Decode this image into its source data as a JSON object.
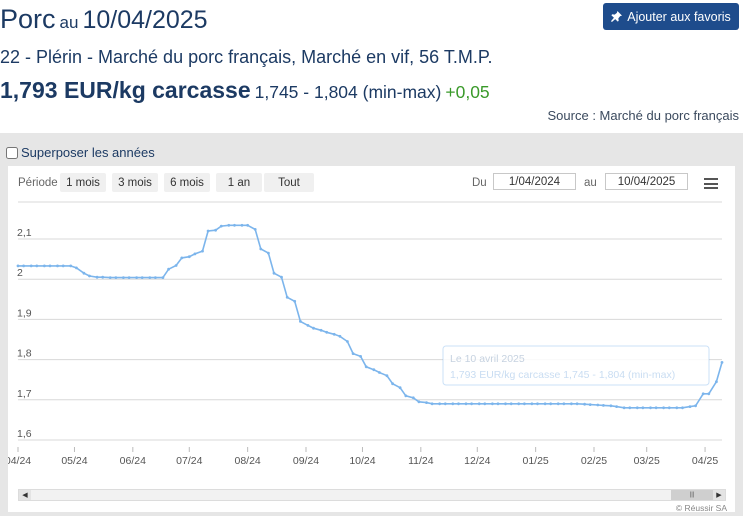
{
  "header": {
    "title": "Porc",
    "date_prefix": "au",
    "date": "10/04/2025",
    "favorite_label": "Ajouter aux favoris",
    "subtitle": "22 - Plérin - Marché du porc français, Marché en vif, 56 T.M.P.",
    "price": "1,793 EUR/kg carcasse",
    "range": "1,745 - 1,804 (min-max)",
    "change": "+0,05",
    "source": "Source : Marché du porc français"
  },
  "controls": {
    "overlay_label": "Superposer les années",
    "period_label": "Période",
    "zoom_buttons": [
      "1 mois",
      "3 mois",
      "6 mois",
      "1 an",
      "Tout"
    ],
    "from_label": "Du",
    "from_value": "1/04/2024",
    "to_label": "au",
    "to_value": "10/04/2025",
    "credits": "© Réussir SA"
  },
  "tooltip": {
    "line1": "Le 10 avril 2025",
    "line2": "1,793 EUR/kg carcasse 1,745 - 1,804 (min-max)"
  },
  "colors": {
    "line": "#7cb5ec",
    "accent": "#1e4c8c",
    "positive": "#3a9a2a"
  },
  "chart_data": {
    "type": "line",
    "x_start": "2024-04-01",
    "x_end": "2025-04-10",
    "ylim": [
      1.6,
      2.15
    ],
    "y_ticks": [
      1.6,
      1.7,
      1.8,
      1.9,
      2,
      2.1
    ],
    "y_tick_labels": [
      "1,6",
      "1,7",
      "1,8",
      "1,9",
      "2",
      "2,1"
    ],
    "x_tick_labels": [
      "04/24",
      "05/24",
      "06/24",
      "07/24",
      "08/24",
      "09/24",
      "10/24",
      "11/24",
      "12/24",
      "01/25",
      "02/25",
      "03/25",
      "04/25"
    ],
    "x_tick_dates": [
      "2024-04-01",
      "2024-05-01",
      "2024-06-01",
      "2024-07-01",
      "2024-08-01",
      "2024-09-01",
      "2024-10-01",
      "2024-11-01",
      "2024-12-01",
      "2025-01-01",
      "2025-02-01",
      "2025-03-01",
      "2025-04-01"
    ],
    "series": [
      {
        "points": [
          [
            "2024-04-01",
            2.033
          ],
          [
            "2024-04-04",
            2.033
          ],
          [
            "2024-04-08",
            2.033
          ],
          [
            "2024-04-11",
            2.033
          ],
          [
            "2024-04-15",
            2.033
          ],
          [
            "2024-04-18",
            2.033
          ],
          [
            "2024-04-22",
            2.033
          ],
          [
            "2024-04-25",
            2.033
          ],
          [
            "2024-04-29",
            2.033
          ],
          [
            "2024-05-02",
            2.028
          ],
          [
            "2024-05-06",
            2.015
          ],
          [
            "2024-05-09",
            2.008
          ],
          [
            "2024-05-13",
            2.005
          ],
          [
            "2024-05-16",
            2.005
          ],
          [
            "2024-05-20",
            2.004
          ],
          [
            "2024-05-23",
            2.004
          ],
          [
            "2024-05-27",
            2.004
          ],
          [
            "2024-05-30",
            2.004
          ],
          [
            "2024-06-03",
            2.004
          ],
          [
            "2024-06-06",
            2.004
          ],
          [
            "2024-06-10",
            2.004
          ],
          [
            "2024-06-13",
            2.004
          ],
          [
            "2024-06-17",
            2.004
          ],
          [
            "2024-06-20",
            2.025
          ],
          [
            "2024-06-24",
            2.034
          ],
          [
            "2024-06-27",
            2.053
          ],
          [
            "2024-07-01",
            2.056
          ],
          [
            "2024-07-04",
            2.063
          ],
          [
            "2024-07-08",
            2.07
          ],
          [
            "2024-07-11",
            2.12
          ],
          [
            "2024-07-15",
            2.122
          ],
          [
            "2024-07-18",
            2.132
          ],
          [
            "2024-07-22",
            2.134
          ],
          [
            "2024-07-25",
            2.134
          ],
          [
            "2024-07-29",
            2.134
          ],
          [
            "2024-08-01",
            2.134
          ],
          [
            "2024-08-05",
            2.124
          ],
          [
            "2024-08-08",
            2.075
          ],
          [
            "2024-08-12",
            2.065
          ],
          [
            "2024-08-15",
            2.015
          ],
          [
            "2024-08-19",
            2.005
          ],
          [
            "2024-08-22",
            1.955
          ],
          [
            "2024-08-26",
            1.945
          ],
          [
            "2024-08-29",
            1.895
          ],
          [
            "2024-09-02",
            1.885
          ],
          [
            "2024-09-05",
            1.878
          ],
          [
            "2024-09-09",
            1.873
          ],
          [
            "2024-09-12",
            1.868
          ],
          [
            "2024-09-16",
            1.863
          ],
          [
            "2024-09-19",
            1.858
          ],
          [
            "2024-09-23",
            1.845
          ],
          [
            "2024-09-26",
            1.815
          ],
          [
            "2024-09-30",
            1.808
          ],
          [
            "2024-10-03",
            1.782
          ],
          [
            "2024-10-07",
            1.775
          ],
          [
            "2024-10-10",
            1.768
          ],
          [
            "2024-10-14",
            1.76
          ],
          [
            "2024-10-17",
            1.74
          ],
          [
            "2024-10-21",
            1.73
          ],
          [
            "2024-10-24",
            1.71
          ],
          [
            "2024-10-28",
            1.705
          ],
          [
            "2024-10-31",
            1.695
          ],
          [
            "2024-11-04",
            1.693
          ],
          [
            "2024-11-07",
            1.69
          ],
          [
            "2024-11-11",
            1.69
          ],
          [
            "2024-11-14",
            1.69
          ],
          [
            "2024-11-18",
            1.69
          ],
          [
            "2024-11-21",
            1.69
          ],
          [
            "2024-11-25",
            1.69
          ],
          [
            "2024-11-28",
            1.69
          ],
          [
            "2024-12-02",
            1.69
          ],
          [
            "2024-12-05",
            1.69
          ],
          [
            "2024-12-09",
            1.69
          ],
          [
            "2024-12-12",
            1.69
          ],
          [
            "2024-12-16",
            1.69
          ],
          [
            "2024-12-19",
            1.69
          ],
          [
            "2024-12-23",
            1.69
          ],
          [
            "2024-12-26",
            1.69
          ],
          [
            "2024-12-30",
            1.69
          ],
          [
            "2025-01-02",
            1.69
          ],
          [
            "2025-01-06",
            1.69
          ],
          [
            "2025-01-09",
            1.69
          ],
          [
            "2025-01-13",
            1.69
          ],
          [
            "2025-01-16",
            1.69
          ],
          [
            "2025-01-20",
            1.69
          ],
          [
            "2025-01-23",
            1.69
          ],
          [
            "2025-01-27",
            1.689
          ],
          [
            "2025-01-30",
            1.688
          ],
          [
            "2025-02-03",
            1.687
          ],
          [
            "2025-02-06",
            1.686
          ],
          [
            "2025-02-10",
            1.685
          ],
          [
            "2025-02-13",
            1.683
          ],
          [
            "2025-02-17",
            1.68
          ],
          [
            "2025-02-20",
            1.68
          ],
          [
            "2025-02-24",
            1.68
          ],
          [
            "2025-02-27",
            1.68
          ],
          [
            "2025-03-03",
            1.68
          ],
          [
            "2025-03-06",
            1.68
          ],
          [
            "2025-03-10",
            1.68
          ],
          [
            "2025-03-13",
            1.68
          ],
          [
            "2025-03-17",
            1.68
          ],
          [
            "2025-03-20",
            1.68
          ],
          [
            "2025-03-24",
            1.683
          ],
          [
            "2025-03-27",
            1.685
          ],
          [
            "2025-03-31",
            1.715
          ],
          [
            "2025-04-03",
            1.715
          ],
          [
            "2025-04-07",
            1.745
          ],
          [
            "2025-04-10",
            1.793
          ]
        ]
      }
    ]
  }
}
